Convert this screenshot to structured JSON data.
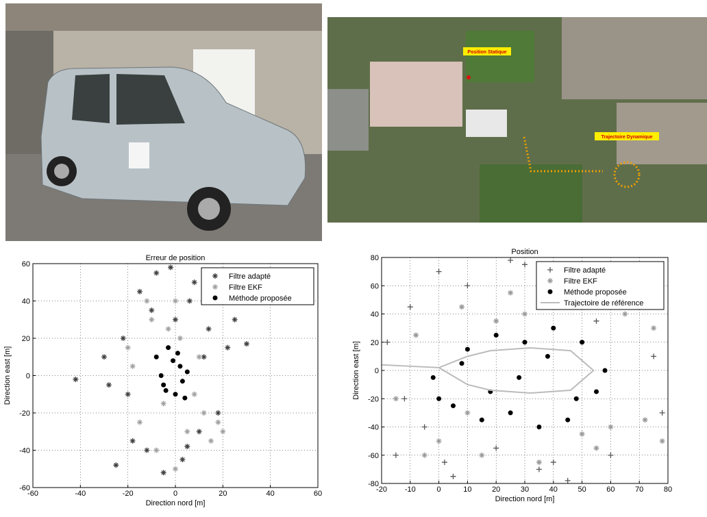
{
  "map": {
    "labels": [
      "Position Statique",
      "Trajectoire Dynamique"
    ]
  },
  "chart_data": [
    {
      "type": "scatter",
      "title": "Erreur de position",
      "xlabel": "Direction nord  [m]",
      "ylabel": "Direction east [m]",
      "xlim": [
        -60,
        60
      ],
      "xticks": [
        -60,
        -40,
        -20,
        0,
        20,
        40,
        60
      ],
      "ylim": [
        -60,
        60
      ],
      "yticks": [
        -60,
        -40,
        -20,
        0,
        20,
        40,
        60
      ],
      "grid": true,
      "legend": "northeast",
      "series": [
        {
          "name": "Filtre adapté",
          "color": "#404040",
          "marker": "star",
          "x": [
            -42,
            -30,
            -25,
            -22,
            -18,
            -15,
            -12,
            -8,
            -5,
            -2,
            0,
            3,
            6,
            10,
            14,
            18,
            22,
            25,
            30,
            -20,
            -10,
            5,
            12,
            -28,
            8
          ],
          "y": [
            -2,
            10,
            -48,
            20,
            -35,
            45,
            -40,
            55,
            -52,
            58,
            30,
            -45,
            40,
            -30,
            25,
            -20,
            15,
            30,
            17,
            -10,
            35,
            -38,
            10,
            -5,
            50
          ]
        },
        {
          "name": "Filtre EKF",
          "color": "#a0a0a0",
          "marker": "star",
          "x": [
            -20,
            -15,
            -10,
            -5,
            0,
            5,
            10,
            15,
            20,
            -18,
            -8,
            2,
            12,
            18,
            -12,
            0,
            8,
            -3
          ],
          "y": [
            15,
            -25,
            30,
            -15,
            40,
            -30,
            10,
            -35,
            -30,
            5,
            -40,
            20,
            -20,
            -25,
            40,
            -50,
            -10,
            25
          ]
        },
        {
          "name": "Méthode proposée",
          "color": "#000000",
          "marker": "dot",
          "x": [
            -8,
            -5,
            -3,
            0,
            2,
            4,
            -6,
            -1,
            3,
            -4,
            1,
            5
          ],
          "y": [
            10,
            -5,
            15,
            -10,
            5,
            -12,
            0,
            8,
            -3,
            -8,
            12,
            2
          ]
        }
      ]
    },
    {
      "type": "scatter",
      "title": "Position",
      "xlabel": "Direction nord  [m]",
      "ylabel": "Direction east [m]",
      "xlim": [
        -20,
        80
      ],
      "xticks": [
        -20,
        -10,
        0,
        10,
        20,
        30,
        40,
        50,
        60,
        70,
        80
      ],
      "ylim": [
        -80,
        80
      ],
      "yticks": [
        -80,
        -60,
        -40,
        -20,
        0,
        20,
        40,
        60,
        80
      ],
      "grid": true,
      "legend": "northeast",
      "series": [
        {
          "name": "Filtre adapté",
          "color": "#555555",
          "marker": "plus",
          "x": [
            -18,
            -15,
            -10,
            -5,
            0,
            5,
            10,
            20,
            30,
            40,
            50,
            60,
            70,
            78,
            -12,
            25,
            45,
            65,
            75,
            2,
            35,
            55
          ],
          "y": [
            20,
            -60,
            45,
            -40,
            70,
            -75,
            60,
            -55,
            75,
            -65,
            70,
            -60,
            50,
            -30,
            -20,
            78,
            -78,
            65,
            10,
            -65,
            -70,
            35
          ]
        },
        {
          "name": "Filtre EKF",
          "color": "#999999",
          "marker": "star",
          "x": [
            -15,
            -8,
            0,
            8,
            15,
            25,
            35,
            45,
            55,
            65,
            72,
            78,
            -5,
            20,
            40,
            60,
            75,
            10,
            30,
            50
          ],
          "y": [
            -20,
            25,
            -50,
            45,
            -60,
            55,
            -65,
            60,
            -55,
            40,
            -35,
            -50,
            -60,
            35,
            50,
            -40,
            30,
            -30,
            40,
            -45
          ]
        },
        {
          "name": "Méthode proposée",
          "color": "#000000",
          "marker": "dot",
          "x": [
            -2,
            5,
            10,
            15,
            20,
            25,
            30,
            35,
            40,
            45,
            50,
            55,
            8,
            18,
            28,
            38,
            48,
            0,
            58
          ],
          "y": [
            -5,
            -25,
            15,
            -35,
            25,
            -30,
            20,
            -40,
            30,
            -35,
            20,
            -15,
            5,
            -15,
            -5,
            10,
            -20,
            -20,
            0
          ]
        },
        {
          "name": "Trajectoire de référence",
          "color": "#bbbbbb",
          "marker": "line",
          "x": [
            -20,
            -10,
            0,
            10,
            18,
            32,
            46,
            54,
            46,
            32,
            18,
            10,
            0
          ],
          "y": [
            4,
            3,
            2,
            10,
            14,
            16,
            14,
            0,
            -14,
            -16,
            -14,
            -10,
            2
          ]
        }
      ]
    }
  ]
}
